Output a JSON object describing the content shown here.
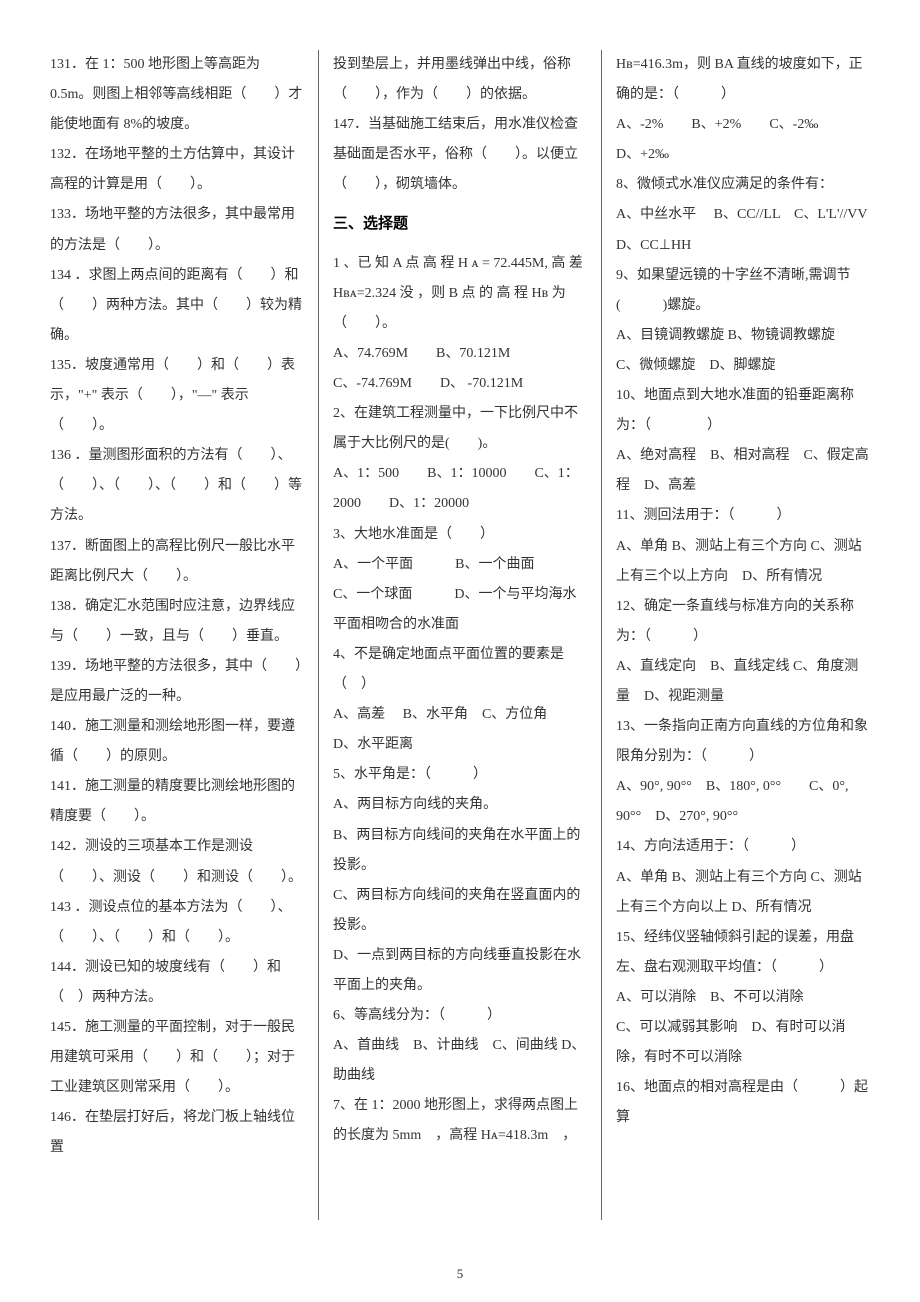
{
  "page_number": "5",
  "col1": {
    "q131": "131．在 1：500 地形图上等高距为 0.5m。则图上相邻等高线相距（　　）才能使地面有 8%的坡度。",
    "q132": "132．在场地平整的土方估算中，其设计高程的计算是用（　　）。",
    "q133": "133．场地平整的方法很多，其中最常用的方法是（　　）。",
    "q134": "134 ．求图上两点间的距离有（　　）和（　　）两种方法。其中（　　）较为精确。",
    "q135": "135．坡度通常用（　　）和（　　）表示，\"+\" 表示（　　），\"—\" 表示（　　）。",
    "q136": "136 ．量测图形面积的方法有（　　）、（　　）、（　　）、（　　）和（　　）等方法。",
    "q137": "137．断面图上的高程比例尺一般比水平距离比例尺大（　　）。",
    "q138": "138．确定汇水范围时应注意，边界线应与（　　）一致，且与（　　）垂直。",
    "q139": "139．场地平整的方法很多，其中（　　）是应用最广泛的一种。",
    "q140": "140．施工测量和测绘地形图一样，要遵循（　　）的原则。",
    "q141": "141．施工测量的精度要比测绘地形图的精度要（　　）。",
    "q142": "142．测设的三项基本工作是测设（　　）、测设（　　）和测设（　　）。",
    "q143": "143 ．测设点位的基本方法为（　　）、（　　）、（　　）和（　　）。",
    "q144": "144．测设已知的坡度线有（　　）和（　）两种方法。",
    "q145": "145．施工测量的平面控制，对于一般民用建筑可采用（　　）和（　　）；对于工业建筑区则常采用（　　）。",
    "q146a": "146．在垫层打好后，将龙门板上轴线位置"
  },
  "col2": {
    "q146b": "投到垫层上，并用墨线弹出中线，俗称（　　），作为（　　）的依据。",
    "q147": "147．当基础施工结束后，用水准仪检查基础面是否水平，俗称（　　）。以便立（　　），砌筑墙体。",
    "heading": "三、选择题",
    "q1": "1 、已 知 A 点 高 程 H ᴀ = 72.445M, 高 差 Hʙᴀ=2.324 没 ，则 B 点 的 高 程 Hʙ 为（　　）。",
    "q1opts": "A、74.769M　　B、70.121M　　C、-74.769M　　D、 -70.121M",
    "q2": "2、在建筑工程测量中，一下比例尺中不属于大比例尺的是(　　)。",
    "q2opts": " A、1：500　　B、1：10000　　C、1：2000　　D、1：20000",
    "q3": "3、大地水准面是（　　）",
    "q3opts": "A、一个平面　　　B、一个曲面\nC、一个球面　　　D、一个与平均海水平面相吻合的水准面",
    "q4": "4、不是确定地面点平面位置的要素是（　）",
    "q4opts": "A、高差　 B、水平角　C、方位角　 D、水平距离",
    "q5": "5、水平角是：（　　　）",
    "q5opts": "A、两目标方向线的夹角。\nB、两目标方向线间的夹角在水平面上的投影。\nC、两目标方向线间的夹角在竖直面内的投影。\nD、一点到两目标的方向线垂直投影在水平面上的夹角。",
    "q6": "6、等高线分为：（　　　）",
    "q6opts": "A、首曲线　B、计曲线　C、间曲线 D、助曲线",
    "q7a": "7、在 1：2000 地形图上，求得两点图上的长度为 5mm　，高程 Hᴀ=418.3m　，"
  },
  "col3": {
    "q7b": "Hʙ=416.3m，则 BA 直线的坡度如下，正确的是：（　　　）",
    "q7opts": "A、-2%　　B、+2%　　C、-2‰　　D、+2‰",
    "q8": "8、微倾式水准仪应满足的条件有：",
    "q8opts": "A、中丝水平　 B、CC//LL　C、L'L'//VV　D、CC⊥HH",
    "q9": "9、如果望远镜的十字丝不清晰,需调节(　　　)螺旋。",
    "q9opts": "A、目镜调教螺旋 B、物镜调教螺旋　C、微倾螺旋　D、脚螺旋",
    "q10": "10、地面点到大地水准面的铅垂距离称为：（　　　　）",
    "q10opts": "A、绝对高程　B、相对高程　C、假定高程　D、高差",
    "q11": "11、测回法用于：（　　　）",
    "q11opts": "A、单角 B、测站上有三个方向 C、测站上有三个以上方向　D、所有情况",
    "q12": "12、确定一条直线与标准方向的关系称为：（　　　）",
    "q12opts": "A、直线定向　B、直线定线 C、角度测量　D、视距测量",
    "q13": "13、一条指向正南方向直线的方位角和象限角分别为：（　　　）",
    "q13opts": "A、90°, 90°°　B、180°, 0°°　　C、0°, 90°°　D、270°, 90°°",
    "q14": "14、方向法适用于：（　　　）",
    "q14opts": "A、单角 B、测站上有三个方向 C、测站上有三个方向以上 D、所有情况",
    "q15": "15、经纬仪竖轴倾斜引起的误差，用盘左、盘右观测取平均值：（　　　）",
    "q15opts": "A、可以消除　B、不可以消除\nC、可以减弱其影响　D、有时可以消除，有时不可以消除",
    "q16": "16、地面点的相对高程是由（　　　）起算"
  }
}
